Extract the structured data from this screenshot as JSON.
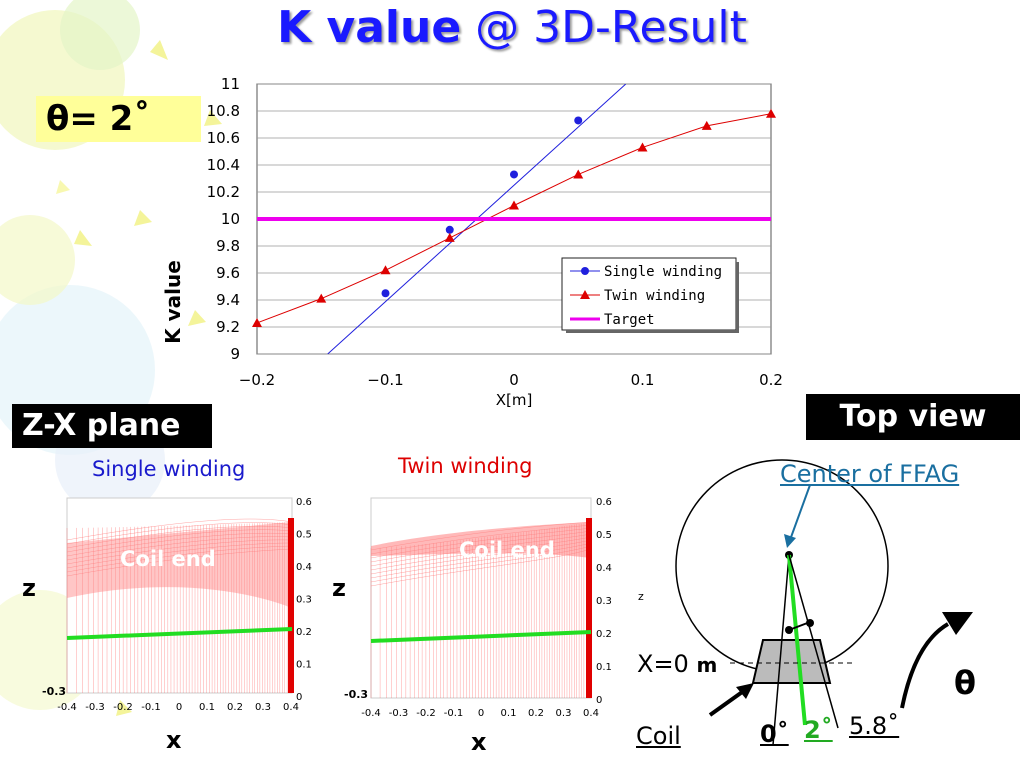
{
  "title": {
    "main": "K value",
    "rest": "@ 3D-Result"
  },
  "theta_label": "θ= 2˚",
  "zx_plane_label": "Z-X plane",
  "top_view_label": "Top view",
  "k_chart": {
    "ylabel": "K value",
    "xlabel": "X[m]",
    "y_ticks": [
      "11",
      "10.8",
      "10.6",
      "10.4",
      "10.2",
      "10",
      "9.8",
      "9.6",
      "9.4",
      "9.2",
      "9"
    ],
    "x_ticks": [
      "−0.2",
      "−0.1",
      "0",
      "0.1",
      "0.2"
    ],
    "legend": [
      "Single winding",
      "Twin winding",
      "Target"
    ]
  },
  "chart_data": {
    "type": "scatter",
    "xlim": [
      -0.2,
      0.2
    ],
    "ylim": [
      9,
      11
    ],
    "grid": "horizontal",
    "legend_position": "bottom-right",
    "series": [
      {
        "name": "Single winding",
        "marker": "circle",
        "color": "#2020dd",
        "points": [
          [
            -0.1,
            9.45
          ],
          [
            -0.05,
            9.92
          ],
          [
            0,
            10.33
          ],
          [
            0.05,
            10.73
          ]
        ],
        "fit_line": [
          [
            -0.145,
            9.0
          ],
          [
            0.087,
            11.0
          ]
        ]
      },
      {
        "name": "Twin winding",
        "marker": "triangle",
        "color": "#dd0000",
        "points": [
          [
            -0.2,
            9.23
          ],
          [
            -0.15,
            9.41
          ],
          [
            -0.1,
            9.62
          ],
          [
            -0.05,
            9.86
          ],
          [
            0,
            10.1
          ],
          [
            0.05,
            10.33
          ],
          [
            0.1,
            10.53
          ],
          [
            0.15,
            10.69
          ],
          [
            0.2,
            10.78
          ]
        ]
      },
      {
        "name": "Target",
        "type": "hline",
        "color": "#ee00ee",
        "y": 10.0
      }
    ]
  },
  "panels": [
    {
      "title": "Single winding",
      "coil_end_label": "Coil end",
      "z_label": "z",
      "x_label": "x",
      "x_ticks": [
        "-0.4",
        "-0.3",
        "-0.2",
        "-0.1",
        "0",
        "0.1",
        "0.2",
        "0.3",
        "0.4"
      ],
      "z_ticks": [
        "0.6",
        "0.5",
        "0.4",
        "0.3",
        "0.2",
        "0.1",
        "0"
      ]
    },
    {
      "title": "Twin winding",
      "coil_end_label": "Coil end",
      "z_label": "z",
      "x_label": "x",
      "x_ticks": [
        "-0.4",
        "-0.3",
        "-0.2",
        "-0.1",
        "0",
        "0.1",
        "0.2",
        "0.3",
        "0.4"
      ],
      "z_ticks": [
        "0.6",
        "0.5",
        "0.4",
        "0.3",
        "0.2",
        "0.1",
        "0"
      ]
    }
  ],
  "top_view": {
    "center_label": "Center of FFAG",
    "x0_prefix": "X=0",
    "x0_unit": "m",
    "coil_label": "Coil",
    "angle_0": "0˚",
    "angle_2": "2˚",
    "angle_58": "5.8˚",
    "theta_symbol": "θ",
    "z_small": "z"
  },
  "colors": {
    "title": "#1a1aff",
    "single": "#2020dd",
    "twin": "#dd0000",
    "target": "#ee00ee",
    "green": "#22dd22",
    "highlight": "#ffff99"
  }
}
